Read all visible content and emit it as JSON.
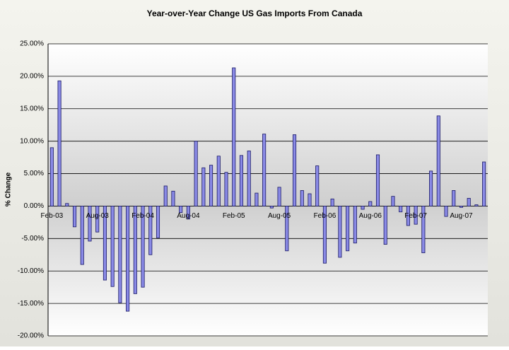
{
  "chart_data": {
    "type": "bar",
    "title": "Year-over-Year Change US Gas  Imports From Canada",
    "y_label": "% Change",
    "categories": [
      "Feb-03",
      null,
      null,
      null,
      null,
      null,
      "Aug-03",
      null,
      null,
      null,
      null,
      null,
      "Feb-04",
      null,
      null,
      null,
      null,
      null,
      "Aug-04",
      null,
      null,
      null,
      null,
      null,
      "Feb-05",
      null,
      null,
      null,
      null,
      null,
      "Aug-05",
      null,
      null,
      null,
      null,
      null,
      "Feb-06",
      null,
      null,
      null,
      null,
      null,
      "Aug-06",
      null,
      null,
      null,
      null,
      null,
      "Feb-07",
      null,
      null,
      null,
      null,
      null,
      "Aug-07",
      null,
      null,
      null
    ],
    "values": [
      9.0,
      19.3,
      0.4,
      -3.2,
      -9.0,
      -5.4,
      -4.0,
      -11.4,
      -12.4,
      -14.9,
      -16.2,
      -13.5,
      -12.5,
      -7.5,
      -4.9,
      3.1,
      2.3,
      -1.0,
      -2.0,
      10.0,
      5.9,
      6.3,
      7.7,
      5.2,
      21.3,
      7.8,
      8.5,
      2.0,
      11.1,
      -0.3,
      2.9,
      -6.9,
      11.0,
      2.4,
      1.9,
      6.2,
      -8.8,
      1.1,
      -7.9,
      -6.9,
      -5.7,
      -0.5,
      0.7,
      7.9,
      -5.9,
      1.5,
      -0.9,
      -3.0,
      -2.8,
      -7.2,
      5.4,
      13.9,
      -1.6,
      2.4,
      -0.2,
      1.2,
      0.2,
      6.8
    ],
    "color": "#8a8ae6",
    "ylim": [
      -20,
      25
    ],
    "yticks": [
      {
        "value": -20,
        "label": "-20.00%"
      },
      {
        "value": -15,
        "label": "-15.00%"
      },
      {
        "value": -10,
        "label": "-10.00%"
      },
      {
        "value": -5,
        "label": "-5.00%"
      },
      {
        "value": 0,
        "label": "0.00%"
      },
      {
        "value": 5,
        "label": "5.00%"
      },
      {
        "value": 10,
        "label": "10.00%"
      },
      {
        "value": 15,
        "label": "15.00%"
      },
      {
        "value": 20,
        "label": "20.00%"
      },
      {
        "value": 25,
        "label": "25.00%"
      }
    ],
    "grid": true
  }
}
